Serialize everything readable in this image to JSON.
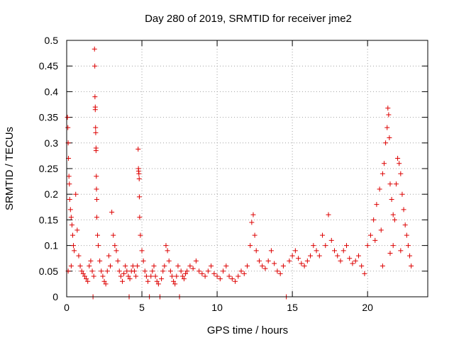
{
  "chart_data": {
    "type": "scatter",
    "title": "Day 280 of 2019, SRMTID for receiver jme2",
    "xlabel": "GPS time / hours",
    "ylabel": "SRMTID / TECUs",
    "xlim": [
      0,
      24
    ],
    "ylim": [
      0,
      0.5
    ],
    "x_ticks": [
      "0",
      "5",
      "10",
      "15",
      "20"
    ],
    "x_tick_values": [
      0,
      5,
      10,
      15,
      20
    ],
    "y_ticks": [
      "0",
      "0.05",
      "0.1",
      "0.15",
      "0.2",
      "0.25",
      "0.3",
      "0.35",
      "0.4",
      "0.45",
      "0.5"
    ],
    "y_tick_values": [
      0,
      0.05,
      0.1,
      0.15,
      0.2,
      0.25,
      0.3,
      0.35,
      0.4,
      0.45,
      0.5
    ],
    "grid": true,
    "marker": "+",
    "color": "#dd0000",
    "series": [
      {
        "name": "SRMTID",
        "points": [
          [
            0.05,
            0.35
          ],
          [
            0.08,
            0.33
          ],
          [
            0.1,
            0.3
          ],
          [
            0.12,
            0.27
          ],
          [
            0.15,
            0.235
          ],
          [
            0.18,
            0.22
          ],
          [
            0.2,
            0.19
          ],
          [
            0.25,
            0.17
          ],
          [
            0.3,
            0.155
          ],
          [
            0.35,
            0.14
          ],
          [
            0.4,
            0.12
          ],
          [
            0.45,
            0.1
          ],
          [
            0.5,
            0.09
          ],
          [
            0.3,
            0.06
          ],
          [
            0.1,
            0.05
          ],
          [
            0.6,
            0.2
          ],
          [
            0.7,
            0.13
          ],
          [
            0.8,
            0.08
          ],
          [
            0.9,
            0.06
          ],
          [
            1.0,
            0.05
          ],
          [
            1.1,
            0.045
          ],
          [
            1.2,
            0.04
          ],
          [
            1.3,
            0.035
          ],
          [
            1.4,
            0.03
          ],
          [
            1.5,
            0.06
          ],
          [
            1.6,
            0.07
          ],
          [
            1.7,
            0.05
          ],
          [
            1.75,
            0.0
          ],
          [
            1.8,
            0.04
          ],
          [
            1.85,
            0.483
          ],
          [
            1.87,
            0.45
          ],
          [
            1.88,
            0.39
          ],
          [
            1.9,
            0.37
          ],
          [
            1.9,
            0.365
          ],
          [
            1.92,
            0.33
          ],
          [
            1.93,
            0.32
          ],
          [
            1.95,
            0.29
          ],
          [
            1.95,
            0.285
          ],
          [
            1.97,
            0.235
          ],
          [
            1.98,
            0.21
          ],
          [
            2.0,
            0.19
          ],
          [
            2.0,
            0.155
          ],
          [
            2.05,
            0.12
          ],
          [
            2.1,
            0.1
          ],
          [
            2.2,
            0.07
          ],
          [
            2.3,
            0.05
          ],
          [
            2.4,
            0.04
          ],
          [
            2.5,
            0.03
          ],
          [
            2.6,
            0.025
          ],
          [
            2.7,
            0.05
          ],
          [
            2.8,
            0.08
          ],
          [
            2.9,
            0.06
          ],
          [
            3.0,
            0.165
          ],
          [
            3.1,
            0.12
          ],
          [
            3.2,
            0.1
          ],
          [
            3.3,
            0.09
          ],
          [
            3.4,
            0.07
          ],
          [
            3.5,
            0.05
          ],
          [
            3.6,
            0.04
          ],
          [
            3.7,
            0.03
          ],
          [
            3.8,
            0.045
          ],
          [
            3.9,
            0.06
          ],
          [
            4.0,
            0.05
          ],
          [
            4.1,
            0.04
          ],
          [
            4.15,
            0.0
          ],
          [
            4.2,
            0.035
          ],
          [
            4.3,
            0.05
          ],
          [
            4.4,
            0.06
          ],
          [
            4.5,
            0.05
          ],
          [
            4.6,
            0.04
          ],
          [
            4.7,
            0.06
          ],
          [
            4.75,
            0.288
          ],
          [
            4.77,
            0.25
          ],
          [
            4.78,
            0.245
          ],
          [
            4.8,
            0.24
          ],
          [
            4.82,
            0.23
          ],
          [
            4.83,
            0.195
          ],
          [
            4.85,
            0.155
          ],
          [
            4.9,
            0.12
          ],
          [
            5.0,
            0.09
          ],
          [
            5.1,
            0.07
          ],
          [
            5.2,
            0.05
          ],
          [
            5.3,
            0.04
          ],
          [
            5.4,
            0.03
          ],
          [
            5.5,
            0.0
          ],
          [
            5.6,
            0.04
          ],
          [
            5.7,
            0.05
          ],
          [
            5.8,
            0.06
          ],
          [
            5.9,
            0.04
          ],
          [
            6.0,
            0.03
          ],
          [
            6.1,
            0.025
          ],
          [
            6.2,
            0.0
          ],
          [
            6.3,
            0.035
          ],
          [
            6.4,
            0.05
          ],
          [
            6.5,
            0.06
          ],
          [
            6.6,
            0.1
          ],
          [
            6.7,
            0.09
          ],
          [
            6.8,
            0.07
          ],
          [
            6.9,
            0.05
          ],
          [
            7.0,
            0.04
          ],
          [
            7.1,
            0.03
          ],
          [
            7.2,
            0.025
          ],
          [
            7.3,
            0.04
          ],
          [
            7.4,
            0.06
          ],
          [
            7.5,
            0.0
          ],
          [
            7.6,
            0.05
          ],
          [
            7.7,
            0.04
          ],
          [
            7.8,
            0.035
          ],
          [
            7.9,
            0.045
          ],
          [
            8.0,
            0.05
          ],
          [
            8.2,
            0.06
          ],
          [
            8.4,
            0.055
          ],
          [
            8.6,
            0.07
          ],
          [
            8.8,
            0.05
          ],
          [
            9.0,
            0.045
          ],
          [
            9.2,
            0.04
          ],
          [
            9.4,
            0.05
          ],
          [
            9.6,
            0.06
          ],
          [
            9.8,
            0.045
          ],
          [
            10.0,
            0.04
          ],
          [
            10.2,
            0.035
          ],
          [
            10.4,
            0.05
          ],
          [
            10.6,
            0.06
          ],
          [
            10.8,
            0.04
          ],
          [
            11.0,
            0.035
          ],
          [
            11.2,
            0.03
          ],
          [
            11.4,
            0.04
          ],
          [
            11.6,
            0.05
          ],
          [
            11.8,
            0.045
          ],
          [
            12.0,
            0.06
          ],
          [
            12.2,
            0.1
          ],
          [
            12.3,
            0.145
          ],
          [
            12.4,
            0.16
          ],
          [
            12.5,
            0.12
          ],
          [
            12.6,
            0.09
          ],
          [
            12.8,
            0.07
          ],
          [
            13.0,
            0.06
          ],
          [
            13.2,
            0.055
          ],
          [
            13.4,
            0.07
          ],
          [
            13.6,
            0.09
          ],
          [
            13.8,
            0.065
          ],
          [
            14.0,
            0.05
          ],
          [
            14.2,
            0.045
          ],
          [
            14.4,
            0.06
          ],
          [
            14.6,
            0.0
          ],
          [
            14.8,
            0.07
          ],
          [
            15.0,
            0.08
          ],
          [
            15.2,
            0.09
          ],
          [
            15.4,
            0.075
          ],
          [
            15.6,
            0.065
          ],
          [
            15.8,
            0.06
          ],
          [
            16.0,
            0.07
          ],
          [
            16.2,
            0.08
          ],
          [
            16.4,
            0.1
          ],
          [
            16.6,
            0.09
          ],
          [
            16.8,
            0.08
          ],
          [
            17.0,
            0.12
          ],
          [
            17.2,
            0.1
          ],
          [
            17.4,
            0.16
          ],
          [
            17.6,
            0.11
          ],
          [
            17.8,
            0.09
          ],
          [
            18.0,
            0.08
          ],
          [
            18.2,
            0.07
          ],
          [
            18.4,
            0.09
          ],
          [
            18.6,
            0.1
          ],
          [
            18.8,
            0.075
          ],
          [
            19.0,
            0.065
          ],
          [
            19.2,
            0.07
          ],
          [
            19.4,
            0.08
          ],
          [
            19.6,
            0.06
          ],
          [
            19.8,
            0.045
          ],
          [
            20.0,
            0.1
          ],
          [
            20.2,
            0.12
          ],
          [
            20.4,
            0.15
          ],
          [
            20.6,
            0.18
          ],
          [
            20.8,
            0.21
          ],
          [
            21.0,
            0.24
          ],
          [
            21.1,
            0.26
          ],
          [
            21.2,
            0.3
          ],
          [
            21.3,
            0.33
          ],
          [
            21.35,
            0.368
          ],
          [
            21.4,
            0.355
          ],
          [
            21.45,
            0.31
          ],
          [
            21.5,
            0.22
          ],
          [
            21.6,
            0.19
          ],
          [
            21.7,
            0.16
          ],
          [
            21.8,
            0.15
          ],
          [
            21.9,
            0.22
          ],
          [
            22.0,
            0.27
          ],
          [
            22.1,
            0.26
          ],
          [
            22.2,
            0.24
          ],
          [
            22.3,
            0.2
          ],
          [
            22.4,
            0.17
          ],
          [
            22.5,
            0.14
          ],
          [
            22.6,
            0.12
          ],
          [
            22.7,
            0.1
          ],
          [
            22.8,
            0.08
          ],
          [
            22.9,
            0.06
          ],
          [
            21.0,
            0.06
          ],
          [
            21.5,
            0.085
          ],
          [
            20.5,
            0.11
          ],
          [
            20.9,
            0.13
          ],
          [
            21.7,
            0.1
          ],
          [
            22.2,
            0.09
          ]
        ]
      }
    ]
  }
}
